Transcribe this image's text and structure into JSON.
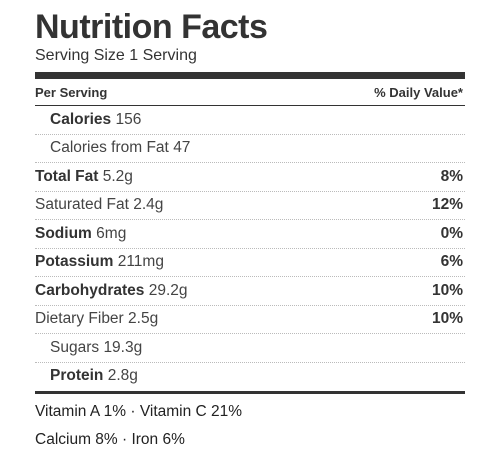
{
  "label": {
    "title": "Nutrition Facts",
    "serving_size": "Serving Size 1 Serving",
    "header_left": "Per Serving",
    "header_right": "% Daily Value*",
    "rows": [
      {
        "name": "Calories",
        "amount": "156",
        "dv": "",
        "bold": true
      },
      {
        "name": "Calories from Fat",
        "amount": "47",
        "dv": "",
        "bold": false
      },
      {
        "name": "Total Fat",
        "amount": "5.2g",
        "dv": "8%",
        "bold": true
      },
      {
        "name": "Saturated Fat",
        "amount": "2.4g",
        "dv": "12%",
        "bold": false
      },
      {
        "name": "Sodium",
        "amount": "6mg",
        "dv": "0%",
        "bold": true
      },
      {
        "name": "Potassium",
        "amount": "211mg",
        "dv": "6%",
        "bold": true
      },
      {
        "name": "Carbohydrates",
        "amount": "29.2g",
        "dv": "10%",
        "bold": true
      },
      {
        "name": "Dietary Fiber",
        "amount": "2.5g",
        "dv": "10%",
        "bold": false
      },
      {
        "name": "Sugars",
        "amount": "19.3g",
        "dv": "",
        "bold": false
      },
      {
        "name": "Protein",
        "amount": "2.8g",
        "dv": "",
        "bold": true
      }
    ],
    "vitamins_line_1": "Vitamin A 1% · Vitamin C 21%",
    "vitamins_line_2": "Calcium 8% · Iron 6%"
  }
}
